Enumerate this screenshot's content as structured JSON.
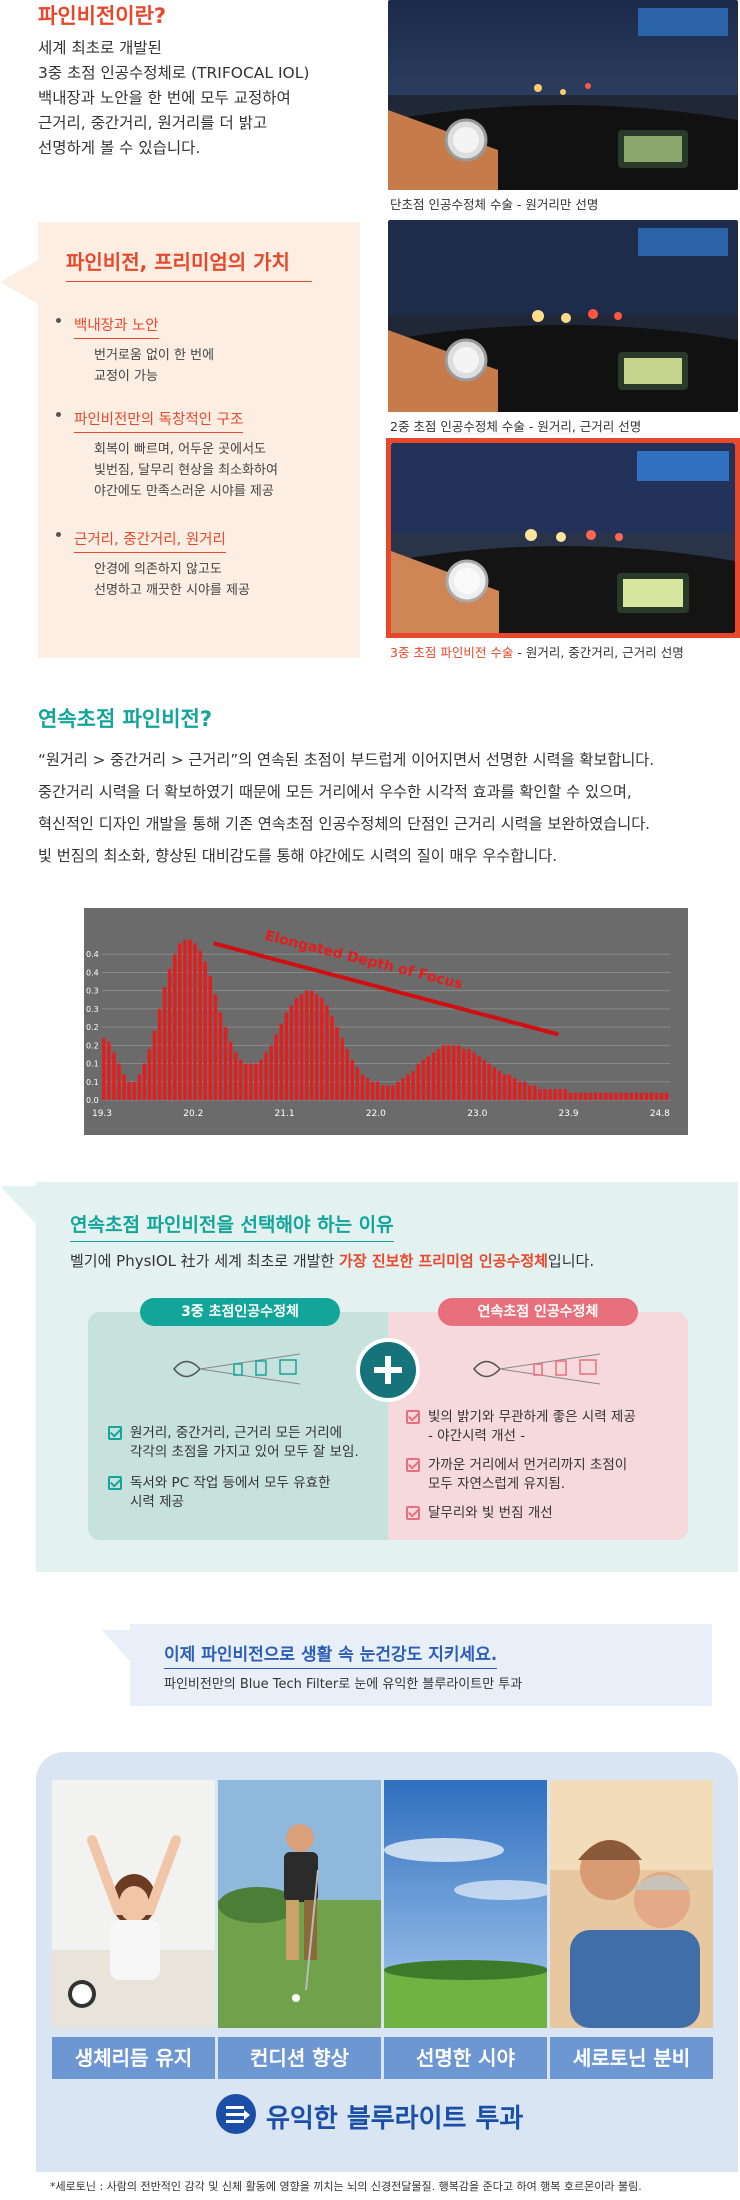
{
  "intro": {
    "title": "파인비전이란?",
    "lines": [
      "세계 최초로 개발된",
      "3중 초점 인공수정체로 (TRIFOCAL IOL)",
      "백내장과 노안을 한 번에 모두 교정하여",
      "근거리, 중간거리, 원거리를 더 밝고",
      "선명하게 볼 수 있습니다."
    ]
  },
  "value": {
    "title": "파인비전, 프리미엄의 가치",
    "items": [
      {
        "head": "백내장과 노안",
        "desc1": "번거로움 없이 한 번에",
        "desc2": "교정이 가능",
        "desc3": ""
      },
      {
        "head": "파인비전만의 독창적인 구조",
        "desc1": "회복이 빠르며, 어두운 곳에서도",
        "desc2": "빛번짐, 달무리 현상을 최소화하여",
        "desc3": "야간에도 만족스러운 시야를 제공"
      },
      {
        "head": "근거리, 중간거리, 원거리",
        "desc1": "안경에 의존하지 않고도",
        "desc2": "선명하고 깨끗한 시야를 제공",
        "desc3": ""
      }
    ]
  },
  "photos": {
    "caption1": "단초점 인공수정체 수술  -  원거리만 선명",
    "caption2": "2중 초점 인공수정체 수술  -  원거리, 근거리 선명",
    "caption3_hl": "3중 초점 파인비전 수술",
    "caption3_rest": "  -  원거리, 중간거리, 근거리 선명"
  },
  "continuous": {
    "title": "연속초점 파인비전?",
    "lines": [
      "“원거리 > 중간거리 > 근거리”의 연속된 초점이 부드럽게 이어지면서 선명한 시력을 확보합니다.",
      "중간거리 시력을 더 확보하였기 때문에 모든 거리에서 우수한 시각적 효과를 확인할 수 있으며,",
      "혁신적인 디자인 개발을 통해 기존 연속초점 인공수정체의 단점인 근거리 시력을 보완하였습니다.",
      "빛 번짐의 최소화, 향상된 대비감도를 통해 야간에도 시력의 질이 매우 우수합니다."
    ]
  },
  "chart_data": {
    "type": "bar",
    "title": "",
    "annotation": "Elongated Depth of Focus",
    "xlabel": "",
    "ylabel": "",
    "x_ticks": [
      "19.3",
      "20.2",
      "21.1",
      "22.0",
      "23.0",
      "23.9",
      "24.8"
    ],
    "y_ticks": [
      "0.0",
      "0.1",
      "0.1",
      "0.2",
      "0.2",
      "0.3",
      "0.3",
      "0.4",
      "0.4"
    ],
    "xlim": [
      19.3,
      24.9
    ],
    "ylim": [
      0,
      0.45
    ],
    "bar_color": "#e02020",
    "background": "#6b6b6b",
    "x": [
      19.3,
      19.35,
      19.4,
      19.45,
      19.5,
      19.55,
      19.6,
      19.65,
      19.7,
      19.75,
      19.8,
      19.85,
      19.9,
      19.95,
      20.0,
      20.05,
      20.1,
      20.15,
      20.2,
      20.25,
      20.3,
      20.35,
      20.4,
      20.45,
      20.5,
      20.55,
      20.6,
      20.65,
      20.7,
      20.75,
      20.8,
      20.85,
      20.9,
      20.95,
      21.0,
      21.05,
      21.1,
      21.15,
      21.2,
      21.25,
      21.3,
      21.35,
      21.4,
      21.45,
      21.5,
      21.55,
      21.6,
      21.65,
      21.7,
      21.75,
      21.8,
      21.85,
      21.9,
      21.95,
      22.0,
      22.05,
      22.1,
      22.15,
      22.2,
      22.25,
      22.3,
      22.35,
      22.4,
      22.45,
      22.5,
      22.55,
      22.6,
      22.65,
      22.7,
      22.75,
      22.8,
      22.85,
      22.9,
      22.95,
      23.0,
      23.05,
      23.1,
      23.15,
      23.2,
      23.25,
      23.3,
      23.35,
      23.4,
      23.45,
      23.5,
      23.55,
      23.6,
      23.65,
      23.7,
      23.75,
      23.8,
      23.85,
      23.9,
      23.95,
      24.0,
      24.05,
      24.1,
      24.15,
      24.2,
      24.25,
      24.3,
      24.35,
      24.4,
      24.45,
      24.5,
      24.55,
      24.6,
      24.65,
      24.7,
      24.75,
      24.8,
      24.85
    ],
    "values": [
      0.17,
      0.16,
      0.13,
      0.1,
      0.07,
      0.05,
      0.05,
      0.07,
      0.1,
      0.14,
      0.19,
      0.25,
      0.31,
      0.36,
      0.4,
      0.43,
      0.44,
      0.44,
      0.43,
      0.41,
      0.38,
      0.34,
      0.29,
      0.24,
      0.2,
      0.16,
      0.13,
      0.11,
      0.1,
      0.1,
      0.1,
      0.11,
      0.13,
      0.15,
      0.18,
      0.21,
      0.24,
      0.26,
      0.28,
      0.29,
      0.3,
      0.3,
      0.29,
      0.28,
      0.26,
      0.23,
      0.2,
      0.17,
      0.14,
      0.11,
      0.09,
      0.07,
      0.06,
      0.05,
      0.05,
      0.04,
      0.04,
      0.04,
      0.05,
      0.06,
      0.07,
      0.08,
      0.1,
      0.11,
      0.12,
      0.13,
      0.14,
      0.15,
      0.15,
      0.15,
      0.15,
      0.14,
      0.14,
      0.13,
      0.12,
      0.11,
      0.1,
      0.09,
      0.08,
      0.07,
      0.07,
      0.06,
      0.05,
      0.05,
      0.04,
      0.04,
      0.03,
      0.03,
      0.03,
      0.03,
      0.03,
      0.03,
      0.02,
      0.02,
      0.02,
      0.02,
      0.02,
      0.02,
      0.02,
      0.02,
      0.02,
      0.02,
      0.02,
      0.02,
      0.02,
      0.02,
      0.02,
      0.02,
      0.02,
      0.02,
      0.02,
      0.02
    ]
  },
  "reason": {
    "title": "연속초점 파인비전을 선택해야 하는 이유",
    "sub_pre": "벨기에 PhysIOL 社가 세계 최초로 개발한 ",
    "sub_hl": "가장 진보한 프리미엄 인공수정체",
    "sub_post": "입니다.",
    "left_pill": "3중 초점인공수정체",
    "right_pill": "연속초점 인공수정체",
    "left_items": [
      {
        "l1": "원거리, 중간거리, 근거리 모든 거리에",
        "l2": "각각의 초점을 가지고 있어 모두 잘 보임."
      },
      {
        "l1": "독서와 PC 작업 등에서 모두 유효한",
        "l2": "시력 제공"
      }
    ],
    "right_items": [
      {
        "l1": "빛의 밝기와 무관하게 좋은 시력 제공",
        "l2": "- 야간시력 개선 -"
      },
      {
        "l1": "가까운 거리에서 먼거리까지 초점이",
        "l2": "모두 자연스럽게 유지됨."
      },
      {
        "l1": "달무리와 빛 번짐 개선",
        "l2": ""
      }
    ]
  },
  "bluelight": {
    "title": "이제 파인비전으로 생활 속 눈건강도 지키세요.",
    "sub": "파인비전만의 Blue Tech Filter로 눈에 유익한 블루라이트만 투과"
  },
  "benefits": {
    "labels": [
      "생체리듬 유지",
      "컨디션 향상",
      "선명한 시야",
      "세로토닌 분비"
    ],
    "footer": "유익한 블루라이트 투과",
    "note": "*세로토닌 : 사람의 전반적인 감각 및 신체 활동에 영향을 끼치는 뇌의 신경전달물질. 행복감을 준다고 하여 행복 호르몬이라 불림."
  },
  "colors": {
    "accent_orange": "#e8472a",
    "accent_teal": "#13a59a",
    "accent_blue": "#1b4fa7"
  }
}
